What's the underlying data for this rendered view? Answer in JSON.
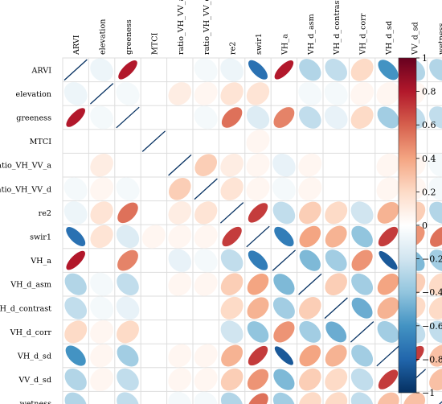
{
  "chart_data": {
    "type": "heatmap",
    "subtype": "correlation-ellipse",
    "variables": [
      "ARVI",
      "elevation",
      "greeness",
      "MTCI",
      "ratio_VH_VV_a",
      "ratio_VH_VV_d",
      "re2",
      "swir1",
      "VH_a",
      "VH_d_asm",
      "VH_d_contrast",
      "VH_d_corr",
      "VH_d_sd",
      "VV_d_sd",
      "wetness"
    ],
    "matrix": [
      [
        1,
        -0.08,
        0.8,
        0.0,
        0.0,
        -0.05,
        -0.08,
        -0.75,
        0.8,
        -0.3,
        -0.25,
        0.2,
        -0.6,
        -0.3,
        -0.3
      ],
      [
        -0.08,
        1,
        -0.05,
        0.0,
        0.1,
        0.05,
        0.15,
        0.15,
        0.0,
        -0.05,
        -0.05,
        0.05,
        0.05,
        0.05,
        0.0
      ],
      [
        0.8,
        -0.05,
        1,
        0.0,
        0.0,
        -0.05,
        0.55,
        -0.15,
        0.5,
        -0.25,
        -0.1,
        0.2,
        -0.35,
        -0.25,
        -0.25
      ],
      [
        0.0,
        0.0,
        0.0,
        1,
        0.0,
        0.0,
        0.0,
        0.05,
        0.0,
        0.0,
        0.0,
        0.0,
        0.0,
        0.0,
        0.0
      ],
      [
        0.0,
        0.1,
        0.0,
        0.0,
        1,
        0.25,
        0.1,
        0.05,
        -0.1,
        0.05,
        0.0,
        0.0,
        0.05,
        0.05,
        -0.05
      ],
      [
        -0.05,
        0.05,
        -0.05,
        0.0,
        0.25,
        1,
        0.15,
        0.05,
        -0.05,
        0.05,
        0.0,
        0.0,
        0.05,
        0.05,
        -0.05
      ],
      [
        -0.08,
        0.15,
        0.55,
        0.0,
        0.1,
        0.15,
        1,
        0.7,
        -0.25,
        0.25,
        0.2,
        -0.2,
        0.35,
        0.25,
        -0.3
      ],
      [
        -0.75,
        0.15,
        -0.15,
        0.05,
        0.05,
        0.05,
        0.7,
        1,
        -0.7,
        0.4,
        0.35,
        -0.4,
        0.7,
        0.45,
        0.55
      ],
      [
        0.8,
        0.0,
        0.5,
        0.0,
        -0.1,
        -0.05,
        -0.25,
        -0.7,
        1,
        -0.45,
        -0.35,
        0.45,
        -0.85,
        -0.45,
        -0.35
      ],
      [
        -0.3,
        -0.05,
        -0.25,
        0.0,
        0.05,
        0.05,
        0.25,
        0.4,
        -0.45,
        1,
        0.25,
        -0.35,
        0.4,
        0.25,
        0.2
      ],
      [
        -0.25,
        -0.05,
        -0.1,
        0.0,
        0.0,
        0.0,
        0.2,
        0.35,
        -0.35,
        0.25,
        1,
        -0.5,
        0.35,
        0.2,
        0.2
      ],
      [
        0.2,
        0.05,
        0.2,
        0.0,
        0.0,
        0.0,
        -0.2,
        -0.4,
        0.45,
        -0.35,
        -0.5,
        1,
        -0.35,
        -0.25,
        -0.25
      ],
      [
        -0.6,
        0.05,
        -0.35,
        0.0,
        0.05,
        0.05,
        0.35,
        0.7,
        -0.85,
        0.4,
        0.35,
        -0.35,
        1,
        0.7,
        0.3
      ],
      [
        -0.3,
        0.05,
        -0.25,
        0.0,
        0.05,
        0.05,
        0.25,
        0.45,
        -0.45,
        0.25,
        0.2,
        -0.25,
        0.7,
        1,
        0.3
      ],
      [
        -0.3,
        0.0,
        -0.25,
        0.0,
        -0.05,
        -0.05,
        -0.3,
        0.55,
        -0.35,
        0.2,
        0.2,
        -0.25,
        0.3,
        0.3,
        1
      ]
    ],
    "colorbar": {
      "range": [
        -1,
        1
      ],
      "ticks": [
        "1",
        "0.8",
        "0.6",
        "0.4",
        "0.2",
        "0",
        "−0.2",
        "−0.4",
        "−0.6",
        "−0.8",
        "−1"
      ],
      "tick_values": [
        1,
        0.8,
        0.6,
        0.4,
        0.2,
        0,
        -0.2,
        -0.4,
        -0.6,
        -0.8,
        -1
      ],
      "colors": [
        "#67001f",
        "#b2182b",
        "#d6604d",
        "#f4a582",
        "#fddbc7",
        "#ffffff",
        "#d1e5f0",
        "#92c5de",
        "#4393c3",
        "#2166ac",
        "#053061"
      ]
    },
    "diagonal_color": "#053061",
    "grid_color": "#dddddd"
  }
}
